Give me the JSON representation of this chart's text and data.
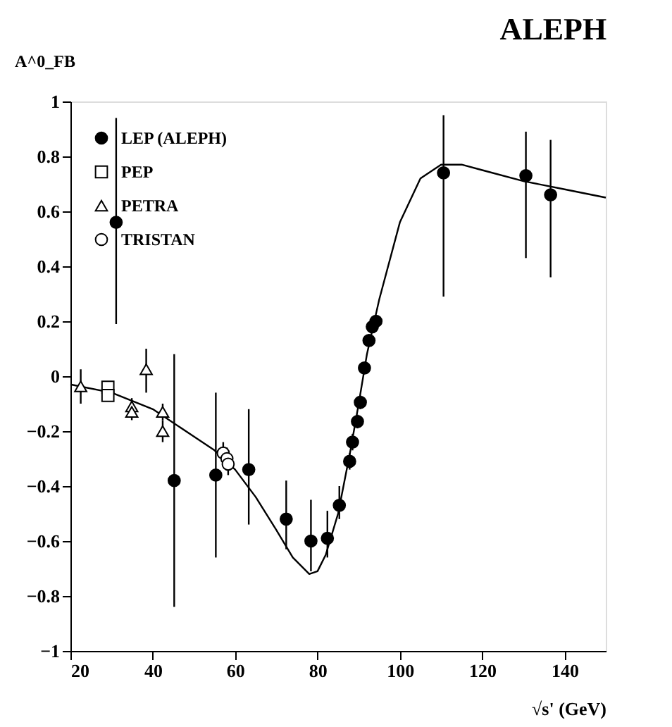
{
  "chart_data": {
    "type": "scatter",
    "title": "ALEPH",
    "xlabel": "√s' (GeV)",
    "ylabel": "A^0_FB",
    "xlim": [
      20,
      150
    ],
    "xticks": [
      20,
      40,
      60,
      80,
      100,
      120,
      140
    ],
    "ylim": [
      -1,
      1
    ],
    "yticks": [
      -1,
      -0.8,
      -0.6,
      -0.4,
      -0.2,
      0,
      0.2,
      0.4,
      0.6,
      0.8,
      1
    ],
    "grid": false,
    "legend": "top left",
    "series": [
      {
        "name": "LEP (ALEPH)",
        "color": "#000000",
        "marker": "circle",
        "x": [
          31.1,
          45.2,
          55.3,
          63.3,
          72.4,
          78.4,
          82.4,
          85.3,
          87.8,
          88.5,
          89.7,
          90.4,
          91.4,
          92.5,
          93.3,
          94.2,
          110.6,
          130.6,
          136.6
        ],
        "values": [
          0.56,
          -0.38,
          -0.36,
          -0.34,
          -0.52,
          -0.6,
          -0.59,
          -0.47,
          -0.31,
          -0.24,
          -0.165,
          -0.095,
          0.03,
          0.13,
          0.18,
          0.2,
          0.74,
          0.73,
          0.66
        ],
        "errors": [
          [
            0.19,
            0.94
          ],
          [
            -0.84,
            0.08
          ],
          [
            -0.66,
            -0.06
          ],
          [
            -0.54,
            -0.12
          ],
          [
            -0.63,
            -0.38
          ],
          [
            -0.71,
            -0.45
          ],
          [
            -0.66,
            -0.49
          ],
          [
            -0.52,
            -0.4
          ],
          [
            -0.34,
            -0.28
          ],
          [
            -0.27,
            -0.21
          ],
          [
            -0.19,
            -0.14
          ],
          [
            -0.12,
            -0.07
          ],
          [
            0.01,
            0.05
          ],
          [
            0.11,
            0.15
          ],
          [
            0.16,
            0.2
          ],
          [
            0.18,
            0.22
          ],
          [
            0.29,
            0.95
          ],
          [
            0.43,
            0.89
          ],
          [
            0.36,
            0.86
          ]
        ]
      },
      {
        "name": "PEP",
        "color": "#ffffff",
        "marker": "square",
        "x": [
          29.1,
          29.1
        ],
        "values": [
          -0.04,
          -0.07
        ]
      },
      {
        "name": "PETRA",
        "color": "#ffffff",
        "marker": "triangle",
        "x": [
          22.5,
          38.4,
          34.9,
          34.9,
          42.4,
          42.4
        ],
        "values": [
          -0.037,
          0.025,
          -0.11,
          -0.13,
          -0.13,
          -0.2
        ],
        "errors": [
          [
            -0.1,
            0.025
          ],
          [
            -0.06,
            0.1
          ],
          [
            -0.14,
            -0.08
          ],
          [
            -0.16,
            -0.1
          ],
          [
            -0.16,
            -0.1
          ],
          [
            -0.24,
            -0.16
          ]
        ]
      },
      {
        "name": "TRISTAN",
        "color": "#ffffff",
        "marker": "circle",
        "x": [
          57.1,
          58.0,
          58.3
        ],
        "values": [
          -0.28,
          -0.3,
          -0.32
        ],
        "errors": [
          [
            -0.32,
            -0.24
          ],
          [
            -0.34,
            -0.26
          ],
          [
            -0.36,
            -0.28
          ]
        ]
      },
      {
        "type": "line",
        "color": "#000000",
        "marker": "none",
        "line_style": "solid",
        "x": [
          20,
          30,
          40,
          50,
          55,
          60,
          65,
          70,
          74,
          78,
          80,
          82,
          85,
          88,
          90,
          92,
          95,
          100,
          105,
          110,
          115,
          120,
          130,
          140,
          150
        ],
        "values": [
          -0.03,
          -0.06,
          -0.12,
          -0.22,
          -0.27,
          -0.34,
          -0.44,
          -0.56,
          -0.66,
          -0.72,
          -0.71,
          -0.65,
          -0.5,
          -0.27,
          -0.1,
          0.08,
          0.28,
          0.56,
          0.72,
          0.77,
          0.77,
          0.75,
          0.71,
          0.68,
          0.65
        ]
      }
    ]
  }
}
